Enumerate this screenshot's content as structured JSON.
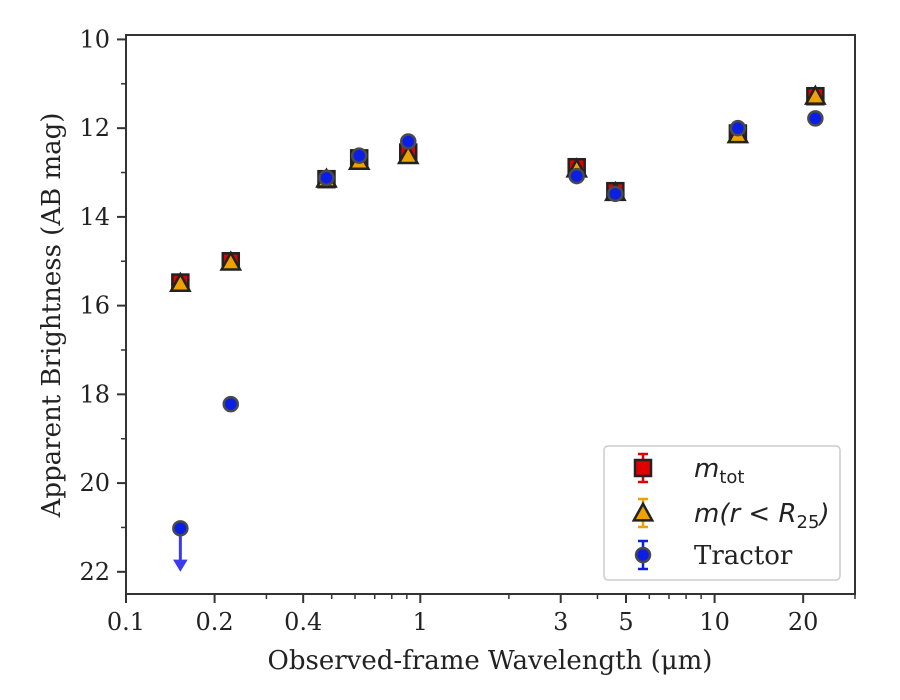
{
  "chart_data": {
    "type": "scatter",
    "xlabel": "Observed-frame Wavelength (μm)",
    "ylabel": "Apparent Brightness (AB mag)",
    "xscale": "log",
    "xlim": [
      0.1,
      30
    ],
    "ylim": [
      22.5,
      9.9
    ],
    "y_inverted": true,
    "xticks": [
      {
        "value": 0.1,
        "label": "0.1"
      },
      {
        "value": 0.2,
        "label": "0.2"
      },
      {
        "value": 0.4,
        "label": "0.4"
      },
      {
        "value": 1,
        "label": "1"
      },
      {
        "value": 3,
        "label": "3"
      },
      {
        "value": 5,
        "label": "5"
      },
      {
        "value": 10,
        "label": "10"
      },
      {
        "value": 20,
        "label": "20"
      }
    ],
    "yticks": [
      {
        "value": 10,
        "label": "10"
      },
      {
        "value": 12,
        "label": "12"
      },
      {
        "value": 14,
        "label": "14"
      },
      {
        "value": 16,
        "label": "16"
      },
      {
        "value": 18,
        "label": "18"
      },
      {
        "value": 20,
        "label": "20"
      },
      {
        "value": 22,
        "label": "22"
      }
    ],
    "grid": false,
    "legend_position": "lower-right",
    "series": [
      {
        "name": "m_tot",
        "legend_italic": "m",
        "legend_sub": "tot",
        "legend_rest": "",
        "marker": "square",
        "color": "#e00000",
        "edge": "#222222",
        "points": [
          {
            "x": 0.153,
            "y": 15.48
          },
          {
            "x": 0.227,
            "y": 15.0
          },
          {
            "x": 0.48,
            "y": 13.15
          },
          {
            "x": 0.62,
            "y": 12.68
          },
          {
            "x": 0.91,
            "y": 12.55
          },
          {
            "x": 3.4,
            "y": 12.88
          },
          {
            "x": 4.6,
            "y": 13.42
          },
          {
            "x": 12.0,
            "y": 12.12
          },
          {
            "x": 22.0,
            "y": 11.28
          }
        ]
      },
      {
        "name": "m(r < R25)",
        "legend_italic": "m(r < R",
        "legend_sub": "25",
        "legend_rest": ")",
        "marker": "triangle",
        "color": "#f0a000",
        "edge": "#222222",
        "points": [
          {
            "x": 0.153,
            "y": 15.5
          },
          {
            "x": 0.227,
            "y": 15.02
          },
          {
            "x": 0.48,
            "y": 13.15
          },
          {
            "x": 0.62,
            "y": 12.75
          },
          {
            "x": 0.91,
            "y": 12.62
          },
          {
            "x": 3.4,
            "y": 12.92
          },
          {
            "x": 4.6,
            "y": 13.45
          },
          {
            "x": 12.0,
            "y": 12.15
          },
          {
            "x": 22.0,
            "y": 11.28
          }
        ]
      },
      {
        "name": "Tractor",
        "legend_italic": "",
        "legend_sub": "",
        "legend_rest": "Tractor",
        "marker": "circle",
        "color": "#0a1ee6",
        "edge": "#4a4a4a",
        "points": [
          {
            "x": 0.153,
            "y": 21.02,
            "upper_limit": true
          },
          {
            "x": 0.227,
            "y": 18.22
          },
          {
            "x": 0.48,
            "y": 13.12
          },
          {
            "x": 0.62,
            "y": 12.62
          },
          {
            "x": 0.91,
            "y": 12.3
          },
          {
            "x": 3.4,
            "y": 13.08
          },
          {
            "x": 4.6,
            "y": 13.48
          },
          {
            "x": 12.0,
            "y": 12.0
          },
          {
            "x": 22.0,
            "y": 11.78
          }
        ]
      }
    ]
  }
}
